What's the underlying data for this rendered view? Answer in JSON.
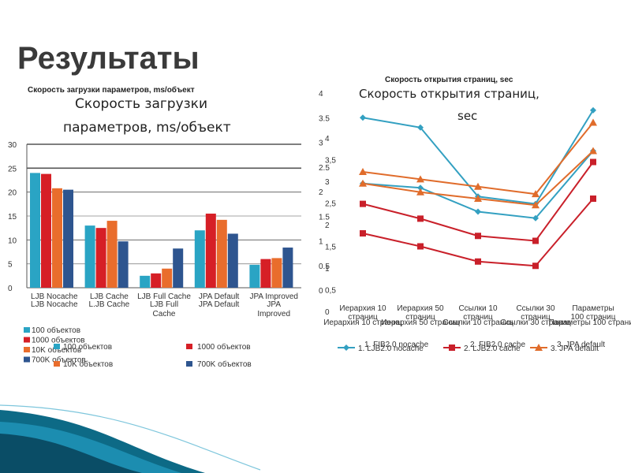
{
  "slide": {
    "title": "Результаты"
  },
  "colors": {
    "teal": "#2AA4C4",
    "red": "#D61F26",
    "orange": "#E96D2C",
    "navy": "#2E558F",
    "l_teal": "#33A0C1",
    "l_red": "#C9202A",
    "l_orange": "#E06C2B"
  },
  "chart_data": [
    {
      "type": "bar",
      "title": "Скорость загрузки параметров, ms/объект",
      "overlay_title_line1": "Скорость загрузки",
      "overlay_title_line2": "параметров, ms/объект",
      "categories": [
        "LJB Nocache",
        "LJB Cache",
        "LJB Full Cache",
        "JPA Default",
        "JPA Improved"
      ],
      "category_labels_alt": [
        "LJB Nocache",
        "L.JB Cache",
        "LJB Full",
        "JPA Default",
        "JPA"
      ],
      "category_labels_alt2": [
        "",
        "",
        "Cache",
        "",
        "Improved"
      ],
      "ylim": [
        0,
        30
      ],
      "yticks": [
        "0",
        "5",
        "10",
        "15",
        "20",
        "25",
        "30"
      ],
      "series": [
        {
          "name": "100 объектов",
          "values": [
            24,
            13,
            2.5,
            12,
            4.8
          ]
        },
        {
          "name": "1000 объектов",
          "values": [
            23.8,
            12.5,
            3,
            15.5,
            6
          ]
        },
        {
          "name": "10K объектов",
          "values": [
            20.8,
            14,
            4,
            14.2,
            6.2
          ]
        },
        {
          "name": "700K объектов",
          "values": [
            20.5,
            9.7,
            8.2,
            11.3,
            8.4
          ]
        }
      ],
      "legend_left": [
        "100 объектов",
        "1000 объектов",
        "10K объектов",
        "700K объектов"
      ],
      "legend_right_a": [
        "100 объектов",
        "10K объектов"
      ],
      "legend_right_b": [
        "1000 объектов",
        "700K объектов"
      ],
      "grid": true
    },
    {
      "type": "line",
      "title": "Скорость открытия страниц, sec",
      "overlay_title_line1": "Скорость открытия страниц,",
      "overlay_title_line2": "sec",
      "categories": [
        "Иерархия 10 страниц",
        "Иерархия 50 страниц",
        "Ссылки 10 страниц",
        "Ссылки 30 страниц",
        "Параметры 100 страниц"
      ],
      "categories_line1": [
        "Иерархия 10",
        "Иерархия 50",
        "Ссылки 10",
        "Ссылки 30",
        "Параметры"
      ],
      "categories_line2": [
        "страниц",
        "страниц",
        "страниц",
        "страниц",
        "100 страниц"
      ],
      "ylim": [
        0,
        4
      ],
      "yticks": [
        "0",
        "0.5",
        "1",
        "1.5",
        "2",
        "2.5",
        "3",
        "3.5",
        "4"
      ],
      "yticks_alt": [
        "0",
        "0,5",
        "1",
        "1,5",
        "2",
        "2,5",
        "3",
        "3,5",
        "4"
      ],
      "series": [
        {
          "name": "1. LJB2.0 nocache",
          "values": [
            3.5,
            3.3,
            1.9,
            1.75,
            3.65
          ]
        },
        {
          "name": "2. LJB2.0 cache",
          "values": [
            1.75,
            1.45,
            1.1,
            1.0,
            2.6
          ]
        },
        {
          "name": "3. JPA default",
          "values": [
            2.4,
            2.25,
            2.1,
            1.95,
            3.4
          ]
        }
      ],
      "series_alt": [
        {
          "name": "1. FIB2.0 nocache",
          "values": [
            2.95,
            2.85,
            2.3,
            2.15,
            3.7
          ]
        },
        {
          "name": "2. FIB2.0 cache",
          "values": [
            1.8,
            1.5,
            1.15,
            1.05,
            2.6
          ]
        },
        {
          "name": "3. JPA default",
          "values": [
            2.95,
            2.75,
            2.6,
            2.45,
            3.7
          ]
        }
      ],
      "grid": false
    }
  ]
}
